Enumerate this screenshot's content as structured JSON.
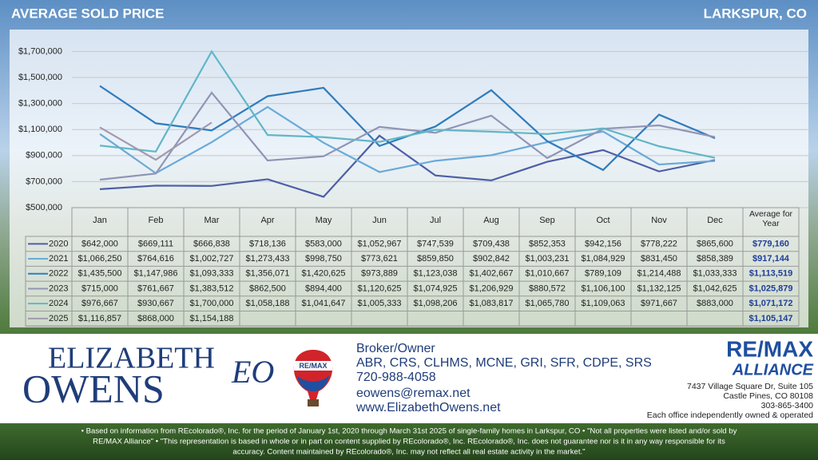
{
  "chart_data": {
    "type": "line",
    "title": "AVERAGE SOLD PRICE",
    "subtitle": "LARKSPUR, CO",
    "categories": [
      "Jan",
      "Feb",
      "Mar",
      "Apr",
      "May",
      "Jun",
      "Jul",
      "Aug",
      "Sep",
      "Oct",
      "Nov",
      "Dec"
    ],
    "ylim": [
      500000,
      1850000
    ],
    "yticks": [
      {
        "value": 500000,
        "label": "$500,000"
      },
      {
        "value": 700000,
        "label": "$700,000"
      },
      {
        "value": 900000,
        "label": "$900,000"
      },
      {
        "value": 1100000,
        "label": "$1,100,000"
      },
      {
        "value": 1300000,
        "label": "$1,300,000"
      },
      {
        "value": 1500000,
        "label": "$1,500,000"
      },
      {
        "value": 1700000,
        "label": "$1,700,000"
      }
    ],
    "grid": true,
    "series": [
      {
        "name": "2020",
        "color": "#4d5fa6",
        "values": [
          642000,
          669111,
          666838,
          718136,
          583000,
          1052967,
          747539,
          709438,
          852353,
          942156,
          778222,
          865600
        ],
        "value_labels": [
          "$642,000",
          "$669,111",
          "$666,838",
          "$718,136",
          "$583,000",
          "$1,052,967",
          "$747,539",
          "$709,438",
          "$852,353",
          "$942,156",
          "$778,222",
          "$865,600"
        ]
      },
      {
        "name": "2021",
        "color": "#6aaad8",
        "values": [
          1066250,
          764616,
          1002727,
          1273433,
          998750,
          773621,
          859850,
          902842,
          1003231,
          1084929,
          831450,
          858389
        ],
        "value_labels": [
          "$1,066,250",
          "$764,616",
          "$1,002,727",
          "$1,273,433",
          "$998,750",
          "$773,621",
          "$859,850",
          "$902,842",
          "$1,003,231",
          "$1,084,929",
          "$831,450",
          "$858,389"
        ]
      },
      {
        "name": "2022",
        "color": "#2f7cbd",
        "values": [
          1435500,
          1147986,
          1093333,
          1356071,
          1420625,
          973889,
          1123038,
          1402667,
          1010667,
          789109,
          1214488,
          1033333
        ],
        "value_labels": [
          "$1,435,500",
          "$1,147,986",
          "$1,093,333",
          "$1,356,071",
          "$1,420,625",
          "$973,889",
          "$1,123,038",
          "$1,402,667",
          "$1,010,667",
          "$789,109",
          "$1,214,488",
          "$1,033,333"
        ]
      },
      {
        "name": "2023",
        "color": "#9095b5",
        "values": [
          715000,
          761667,
          1383512,
          862500,
          894400,
          1120625,
          1074925,
          1206929,
          880572,
          1106100,
          1132125,
          1042625
        ],
        "value_labels": [
          "$715,000",
          "$761,667",
          "$1,383,512",
          "$862,500",
          "$894,400",
          "$1,120,625",
          "$1,074,925",
          "$1,206,929",
          "$880,572",
          "$1,106,100",
          "$1,132,125",
          "$1,042,625"
        ]
      },
      {
        "name": "2024",
        "color": "#62b6c6",
        "values": [
          976667,
          930667,
          1700000,
          1058188,
          1041647,
          1005333,
          1098206,
          1083817,
          1065780,
          1109063,
          971667,
          883000
        ],
        "value_labels": [
          "$976,667",
          "$930,667",
          "$1,700,000",
          "$1,058,188",
          "$1,041,647",
          "$1,005,333",
          "$1,098,206",
          "$1,083,817",
          "$1,065,780",
          "$1,109,063",
          "$971,667",
          "$883,000"
        ]
      },
      {
        "name": "2025",
        "color": "#a09aae",
        "values": [
          1116857,
          868000,
          1154188,
          null,
          null,
          null,
          null,
          null,
          null,
          null,
          null,
          null
        ],
        "value_labels": [
          "$1,116,857",
          "$868,000",
          "$1,154,188",
          null,
          null,
          null,
          null,
          null,
          null,
          null,
          null,
          null
        ]
      }
    ],
    "averages": {
      "name": "Average for Year",
      "values": [
        779160,
        917144,
        1113519,
        1025879,
        1071172,
        1105147
      ],
      "value_labels": [
        "$779,160",
        "$917,144",
        "$1,113,519",
        "$1,025,879",
        "$1,071,172",
        "$1,105,147"
      ]
    }
  },
  "agent": {
    "first": "ELIZABETH",
    "last": "OWENS",
    "monogram": "EO",
    "balloon": "RE/MAX",
    "role": "Broker/Owner",
    "credentials": "ABR, CRS, CLHMS, MCNE, GRI, SFR, CDPE, SRS",
    "phone": "720-988-4058",
    "email": "eowens@remax.net",
    "website": "www.ElizabethOwens.net"
  },
  "office": {
    "brand": "RE/MAX",
    "name": "ALLIANCE",
    "address1": "7437 Village Square Dr, Suite 105",
    "address2": "Castle Pines, CO 80108",
    "phone": "303-865-3400",
    "note": "Each office independently owned & operated"
  },
  "disclaimer": [
    "• Based on information from REcolorado®, Inc. for the period of January 1st, 2020 through March 31st 2025 of single-family homes in Larkspur, CO • \"Not all properties were listed and/or sold by",
    "RE/MAX Alliance\" • \"This representation is based in whole or in part on content supplied by REcolorado®, Inc. REcolorado®, Inc. does not guarantee nor is it in any way responsible for its",
    "accuracy. Content maintained by REcolorado®, Inc. may not reflect all real estate activity in the market.\""
  ]
}
